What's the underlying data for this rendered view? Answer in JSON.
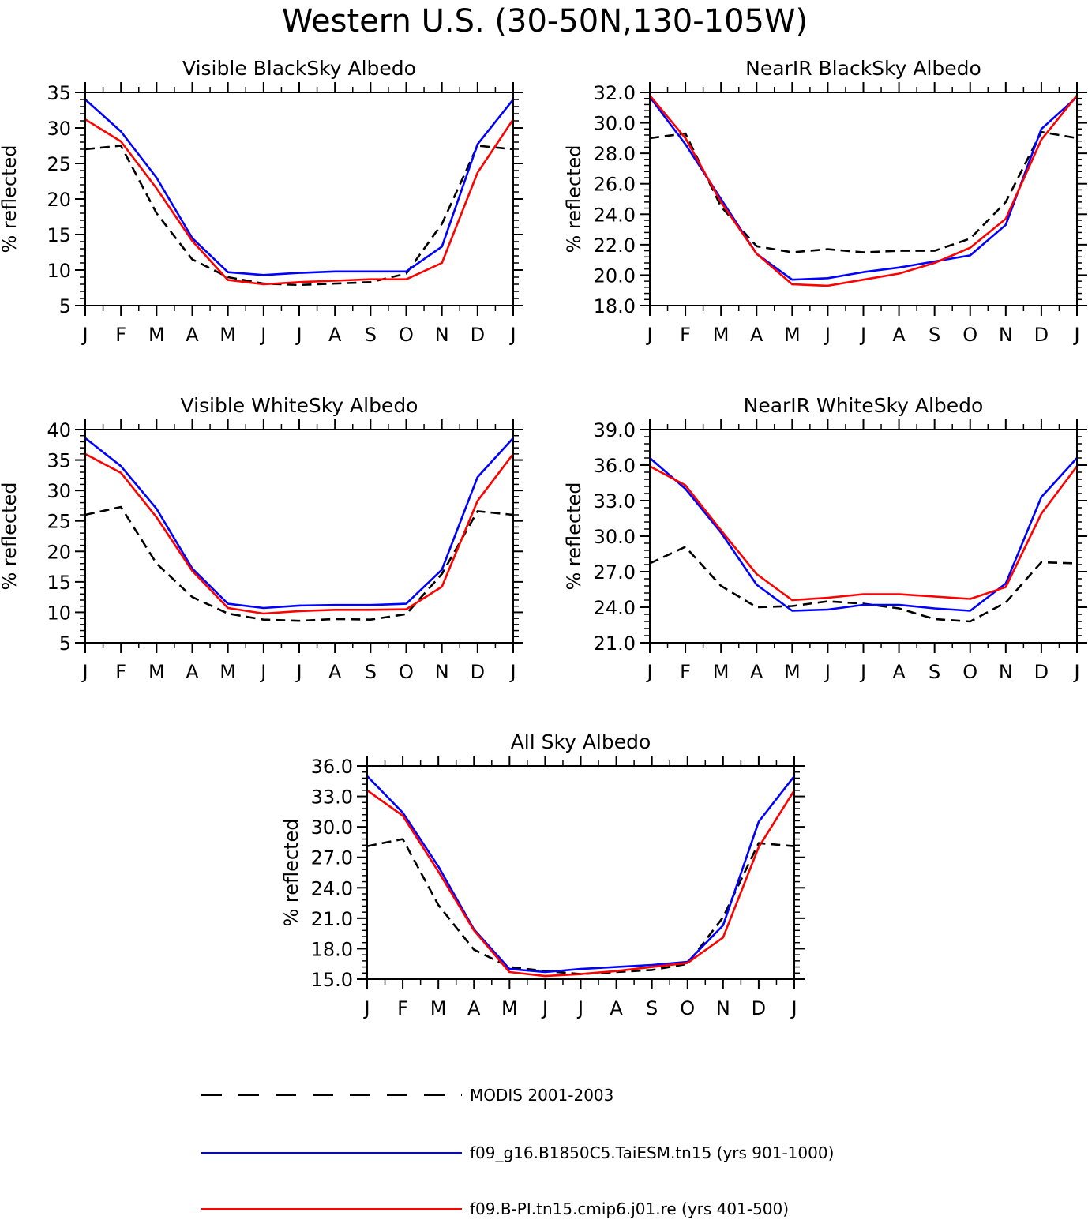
{
  "title": "Western U.S. (30-50N,130-105W)",
  "months": [
    "J",
    "F",
    "M",
    "A",
    "M",
    "J",
    "J",
    "A",
    "S",
    "O",
    "N",
    "D",
    "J"
  ],
  "ylabel": "% reflected",
  "series_styles": [
    {
      "name": "MODIS 2001-2003",
      "color": "#000000",
      "dash": true
    },
    {
      "name": "f09_g16.B1850C5.TaiESM.tn15 (yrs 901-1000)",
      "color": "#0000ff",
      "dash": false
    },
    {
      "name": "f09.B-PI.tn15.cmip6.j01.re (yrs 401-500)",
      "color": "#ff0000",
      "dash": false
    }
  ],
  "chart_data": [
    {
      "type": "line",
      "title": "Visible BlackSky Albedo",
      "ylabel": "% reflected",
      "ylim": [
        5,
        35
      ],
      "yticks": [
        "5",
        "10",
        "15",
        "20",
        "25",
        "30",
        "35"
      ],
      "categories": [
        "J",
        "F",
        "M",
        "A",
        "M",
        "J",
        "J",
        "A",
        "S",
        "O",
        "N",
        "D",
        "J"
      ],
      "series": [
        {
          "name": "MODIS 2001-2003",
          "values": [
            27.0,
            27.5,
            18.0,
            11.5,
            9.0,
            8.1,
            7.9,
            8.1,
            8.3,
            9.5,
            16.5,
            27.5,
            27.0
          ]
        },
        {
          "name": "f09_g16.B1850C5.TaiESM.tn15 (yrs 901-1000)",
          "values": [
            34.0,
            29.5,
            23.0,
            14.5,
            9.7,
            9.3,
            9.6,
            9.8,
            9.8,
            9.8,
            13.3,
            27.7,
            34.0
          ]
        },
        {
          "name": "f09.B-PI.tn15.cmip6.j01.re (yrs 401-500)",
          "values": [
            31.2,
            28.1,
            21.5,
            14.1,
            8.6,
            8.0,
            8.3,
            8.5,
            8.7,
            8.7,
            11.0,
            23.7,
            31.2
          ]
        }
      ]
    },
    {
      "type": "line",
      "title": "NearIR BlackSky Albedo",
      "ylabel": "% reflected",
      "ylim": [
        18,
        32
      ],
      "yticks": [
        "18.0",
        "20.0",
        "22.0",
        "24.0",
        "26.0",
        "28.0",
        "30.0",
        "32.0"
      ],
      "categories": [
        "J",
        "F",
        "M",
        "A",
        "M",
        "J",
        "J",
        "A",
        "S",
        "O",
        "N",
        "D",
        "J"
      ],
      "series": [
        {
          "name": "MODIS 2001-2003",
          "values": [
            29.0,
            29.3,
            24.5,
            21.9,
            21.5,
            21.7,
            21.5,
            21.6,
            21.6,
            22.4,
            24.8,
            29.4,
            29.0
          ]
        },
        {
          "name": "f09_g16.B1850C5.TaiESM.tn15 (yrs 901-1000)",
          "values": [
            31.7,
            28.6,
            25.0,
            21.4,
            19.7,
            19.8,
            20.2,
            20.5,
            20.9,
            21.3,
            23.3,
            29.6,
            31.7
          ]
        },
        {
          "name": "f09.B-PI.tn15.cmip6.j01.re (yrs 401-500)",
          "values": [
            31.8,
            29.0,
            24.8,
            21.4,
            19.4,
            19.3,
            19.7,
            20.1,
            20.8,
            21.8,
            23.7,
            28.9,
            31.8
          ]
        }
      ]
    },
    {
      "type": "line",
      "title": "Visible WhiteSky Albedo",
      "ylabel": "% reflected",
      "ylim": [
        5,
        40
      ],
      "yticks": [
        "5",
        "10",
        "15",
        "20",
        "25",
        "30",
        "35",
        "40"
      ],
      "categories": [
        "J",
        "F",
        "M",
        "A",
        "M",
        "J",
        "J",
        "A",
        "S",
        "O",
        "N",
        "D",
        "J"
      ],
      "series": [
        {
          "name": "MODIS 2001-2003",
          "values": [
            26.0,
            27.3,
            18.0,
            12.5,
            9.8,
            8.8,
            8.6,
            8.9,
            8.8,
            9.7,
            16.3,
            26.6,
            26.0
          ]
        },
        {
          "name": "f09_g16.B1850C5.TaiESM.tn15 (yrs 901-1000)",
          "values": [
            38.6,
            34.0,
            27.0,
            17.2,
            11.4,
            10.7,
            11.1,
            11.2,
            11.2,
            11.4,
            17.0,
            32.2,
            38.6
          ]
        },
        {
          "name": "f09.B-PI.tn15.cmip6.j01.re (yrs 401-500)",
          "values": [
            36.0,
            32.9,
            25.6,
            16.8,
            10.7,
            9.8,
            10.2,
            10.4,
            10.4,
            10.5,
            14.2,
            28.3,
            36.0
          ]
        }
      ]
    },
    {
      "type": "line",
      "title": "NearIR WhiteSky Albedo",
      "ylabel": "% reflected",
      "ylim": [
        21,
        39
      ],
      "yticks": [
        "21.0",
        "24.0",
        "27.0",
        "30.0",
        "33.0",
        "36.0",
        "39.0"
      ],
      "categories": [
        "J",
        "F",
        "M",
        "A",
        "M",
        "J",
        "J",
        "A",
        "S",
        "O",
        "N",
        "D",
        "J"
      ],
      "series": [
        {
          "name": "MODIS 2001-2003",
          "values": [
            27.7,
            29.1,
            25.8,
            24.0,
            24.1,
            24.5,
            24.3,
            23.9,
            23.0,
            22.8,
            24.4,
            27.8,
            27.7
          ]
        },
        {
          "name": "f09_g16.B1850C5.TaiESM.tn15 (yrs 901-1000)",
          "values": [
            36.6,
            34.0,
            30.3,
            25.9,
            23.7,
            23.8,
            24.2,
            24.2,
            23.9,
            23.7,
            26.0,
            33.3,
            36.6
          ]
        },
        {
          "name": "f09.B-PI.tn15.cmip6.j01.re (yrs 401-500)",
          "values": [
            35.9,
            34.3,
            30.5,
            26.8,
            24.6,
            24.8,
            25.1,
            25.1,
            24.9,
            24.7,
            25.7,
            31.9,
            35.9
          ]
        }
      ]
    },
    {
      "type": "line",
      "title": "All Sky Albedo",
      "ylabel": "% reflected",
      "ylim": [
        15,
        36
      ],
      "yticks": [
        "15.0",
        "18.0",
        "21.0",
        "24.0",
        "27.0",
        "30.0",
        "33.0",
        "36.0"
      ],
      "categories": [
        "J",
        "F",
        "M",
        "A",
        "M",
        "J",
        "J",
        "A",
        "S",
        "O",
        "N",
        "D",
        "J"
      ],
      "series": [
        {
          "name": "MODIS 2001-2003",
          "values": [
            28.1,
            28.8,
            22.3,
            17.9,
            16.2,
            15.8,
            15.5,
            15.7,
            15.9,
            16.5,
            21.1,
            28.4,
            28.1
          ]
        },
        {
          "name": "f09_g16.B1850C5.TaiESM.tn15 (yrs 901-1000)",
          "values": [
            35.0,
            31.4,
            26.1,
            19.9,
            16.0,
            15.7,
            16.0,
            16.2,
            16.4,
            16.7,
            20.3,
            30.5,
            35.0
          ]
        },
        {
          "name": "f09.B-PI.tn15.cmip6.j01.re (yrs 401-500)",
          "values": [
            33.6,
            31.1,
            25.6,
            19.8,
            15.7,
            15.3,
            15.5,
            15.8,
            16.2,
            16.6,
            19.1,
            28.0,
            33.6
          ]
        }
      ]
    }
  ]
}
